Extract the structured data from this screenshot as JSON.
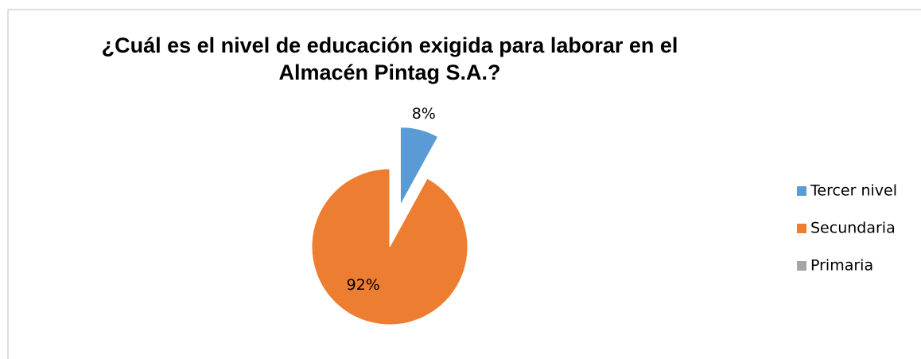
{
  "chart_data": {
    "type": "pie",
    "title": "¿Cuál es el nivel de educación exigida para laborar en el Almacén Pintag S.A.?",
    "categories": [
      "Tercer nivel",
      "Secundaria",
      "Primaria"
    ],
    "values": [
      8,
      92,
      0
    ],
    "value_labels": [
      "8%",
      "92%",
      null
    ],
    "colors": [
      "#5b9bd5",
      "#ed7d31",
      "#a5a5a5"
    ],
    "legend": "right"
  }
}
